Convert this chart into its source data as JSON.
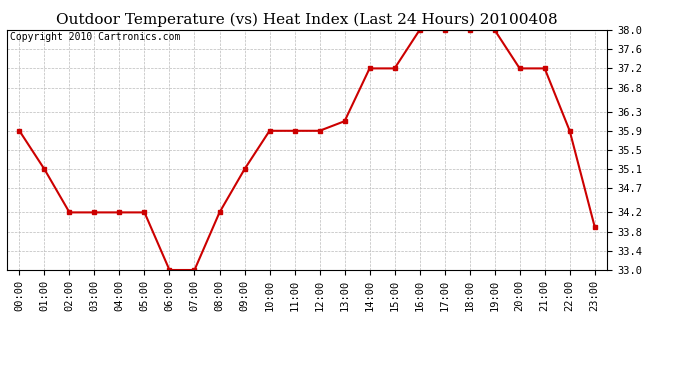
{
  "title": "Outdoor Temperature (vs) Heat Index (Last 24 Hours) 20100408",
  "copyright_text": "Copyright 2010 Cartronics.com",
  "x_labels": [
    "00:00",
    "01:00",
    "02:00",
    "03:00",
    "04:00",
    "05:00",
    "06:00",
    "07:00",
    "08:00",
    "09:00",
    "10:00",
    "11:00",
    "12:00",
    "13:00",
    "14:00",
    "15:00",
    "16:00",
    "17:00",
    "18:00",
    "19:00",
    "20:00",
    "21:00",
    "22:00",
    "23:00"
  ],
  "y_values": [
    35.9,
    35.1,
    34.2,
    34.2,
    34.2,
    34.2,
    33.0,
    33.0,
    34.2,
    35.1,
    35.9,
    35.9,
    35.9,
    36.1,
    37.2,
    37.2,
    38.0,
    38.0,
    38.0,
    38.0,
    37.2,
    37.2,
    35.9,
    33.9
  ],
  "line_color": "#cc0000",
  "marker": "s",
  "marker_size": 3,
  "marker_color": "#cc0000",
  "ylim_min": 33.0,
  "ylim_max": 38.0,
  "yticks": [
    33.0,
    33.4,
    33.8,
    34.2,
    34.7,
    35.1,
    35.5,
    35.9,
    36.3,
    36.8,
    37.2,
    37.6,
    38.0
  ],
  "grid_color": "#bbbbbb",
  "bg_color": "#ffffff",
  "title_fontsize": 11,
  "copyright_fontsize": 7,
  "tick_fontsize": 7.5,
  "linewidth": 1.5
}
